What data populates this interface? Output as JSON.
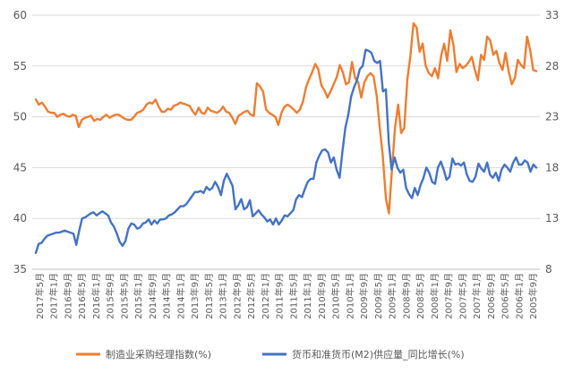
{
  "chart_data": {
    "type": "line",
    "title": "",
    "x_order": "newest-left",
    "y_left": {
      "min": 35,
      "max": 60,
      "step": 5,
      "ticks": [
        "35",
        "40",
        "45",
        "50",
        "55",
        "60"
      ]
    },
    "y_right": {
      "min": 8,
      "max": 33,
      "step": 5,
      "ticks": [
        "8",
        "13",
        "18",
        "23",
        "28",
        "33"
      ]
    },
    "grid": true,
    "legend_position": "bottom",
    "x_tick_labels": [
      "2017年5月",
      "2017年1月",
      "2016年9月",
      "2016年5月",
      "2016年1月",
      "2015年9月",
      "2015年5月",
      "2015年1月",
      "2014年9月",
      "2014年5月",
      "2014年1月",
      "2013年9月",
      "2013年5月",
      "2013年1月",
      "2012年9月",
      "2012年5月",
      "2012年1月",
      "2011年9月",
      "2011年5月",
      "2011年1月",
      "2010年9月",
      "2010年5月",
      "2010年1月",
      "2009年9月",
      "2009年5月",
      "2009年1月",
      "2008年9月",
      "2008年5月",
      "2008年1月",
      "2007年9月",
      "2007年5月",
      "2007年1月",
      "2006年9月",
      "2006年5月",
      "2006年1月",
      "2005年9月"
    ],
    "series": [
      {
        "name": "制造业采购经理指数(%)",
        "axis": "left",
        "color": "#ed7d31",
        "values": [
          51.7,
          51.2,
          51.4,
          51.0,
          50.5,
          50.4,
          50.4,
          50.0,
          50.2,
          50.3,
          50.1,
          50.0,
          50.2,
          50.1,
          49.0,
          49.7,
          49.9,
          50.0,
          50.1,
          49.6,
          49.8,
          49.7,
          50.0,
          50.2,
          49.9,
          50.1,
          50.2,
          50.2,
          50.0,
          49.8,
          49.7,
          49.7,
          50.0,
          50.4,
          50.5,
          50.7,
          51.2,
          51.4,
          51.3,
          51.7,
          51.0,
          50.5,
          50.5,
          50.8,
          50.7,
          51.1,
          51.2,
          51.4,
          51.3,
          51.2,
          51.1,
          50.6,
          50.2,
          50.9,
          50.4,
          50.3,
          50.9,
          50.6,
          50.5,
          50.4,
          50.6,
          51.0,
          50.5,
          50.4,
          49.9,
          49.3,
          50.1,
          50.3,
          50.5,
          50.6,
          50.2,
          50.1,
          53.3,
          53.0,
          52.5,
          50.7,
          50.4,
          50.2,
          50.0,
          49.2,
          50.4,
          51.0,
          51.2,
          51.0,
          50.7,
          50.4,
          50.7,
          51.5,
          52.9,
          53.7,
          54.4,
          55.2,
          54.7,
          53.1,
          52.6,
          51.9,
          52.5,
          53.2,
          53.9,
          55.1,
          54.4,
          53.2,
          53.4,
          55.4,
          53.8,
          53.4,
          51.9,
          53.4,
          54.0,
          54.3,
          54.0,
          52.1,
          49.0,
          46.2,
          42.0,
          40.5,
          44.8,
          48.9,
          51.2,
          48.4,
          48.9,
          53.7,
          56.0,
          59.2,
          58.8,
          56.4,
          57.2,
          55.0,
          54.3,
          54.0,
          54.8,
          53.8,
          56.0,
          57.2,
          55.5,
          58.5,
          57.1,
          54.4,
          55.2,
          54.8,
          55.0,
          55.4,
          55.9,
          54.6,
          53.6,
          56.1,
          55.6,
          57.9,
          57.5,
          56.1,
          56.5,
          55.3,
          54.6,
          56.3,
          54.5,
          53.2,
          53.8,
          55.6,
          55.1,
          54.8,
          57.9,
          56.6,
          54.6,
          54.5
        ]
      },
      {
        "name": "货币和准货币(M2)供应量_同比增长(%)",
        "axis": "right",
        "color": "#4472c4",
        "values": [
          9.6,
          10.5,
          10.6,
          11.0,
          11.3,
          11.4,
          11.5,
          11.6,
          11.6,
          11.7,
          11.8,
          11.7,
          11.6,
          11.5,
          10.4,
          11.8,
          13.0,
          13.1,
          13.3,
          13.5,
          13.6,
          13.3,
          13.5,
          13.7,
          13.5,
          13.3,
          12.6,
          12.2,
          11.5,
          10.7,
          10.3,
          10.8,
          12.0,
          12.5,
          12.4,
          12.0,
          12.1,
          12.5,
          12.6,
          12.9,
          12.4,
          12.8,
          12.5,
          12.9,
          12.9,
          13.0,
          13.3,
          13.4,
          13.6,
          13.9,
          14.2,
          14.2,
          14.4,
          14.8,
          15.2,
          15.6,
          15.6,
          15.7,
          15.5,
          16.1,
          15.8,
          16.0,
          16.6,
          16.1,
          15.3,
          16.7,
          17.4,
          16.8,
          16.2,
          13.9,
          14.3,
          14.9,
          13.9,
          14.1,
          14.8,
          13.2,
          13.5,
          13.8,
          13.4,
          13.1,
          12.7,
          12.9,
          12.4,
          13.0,
          12.4,
          12.8,
          13.3,
          13.2,
          13.5,
          13.8,
          14.9,
          15.3,
          15.1,
          15.9,
          16.6,
          16.9,
          16.9,
          18.5,
          19.2,
          19.7,
          19.8,
          19.5,
          18.5,
          19.0,
          17.8,
          17.0,
          19.6,
          21.9,
          23.2,
          25.0,
          25.9,
          26.6,
          27.7,
          28.0,
          29.6,
          29.5,
          29.3,
          28.5,
          28.3,
          28.5,
          25.5,
          25.7,
          20.5,
          17.8,
          19.0,
          18.0,
          17.5,
          17.8,
          16.0,
          15.4,
          15.0,
          16.0,
          15.3,
          16.3,
          17.0,
          18.0,
          17.5,
          16.6,
          16.4,
          18.0,
          18.6,
          17.8,
          16.8,
          17.1,
          18.9,
          18.3,
          18.4,
          18.2,
          18.5,
          17.3,
          16.7,
          16.6,
          17.1,
          18.4,
          17.9,
          17.6,
          18.5,
          17.3,
          17.0,
          17.5,
          16.7,
          17.8,
          18.3,
          18.0,
          17.6,
          18.5,
          19.0,
          18.3,
          18.3,
          18.7,
          18.5,
          17.6,
          18.3,
          18.0
        ]
      }
    ]
  }
}
